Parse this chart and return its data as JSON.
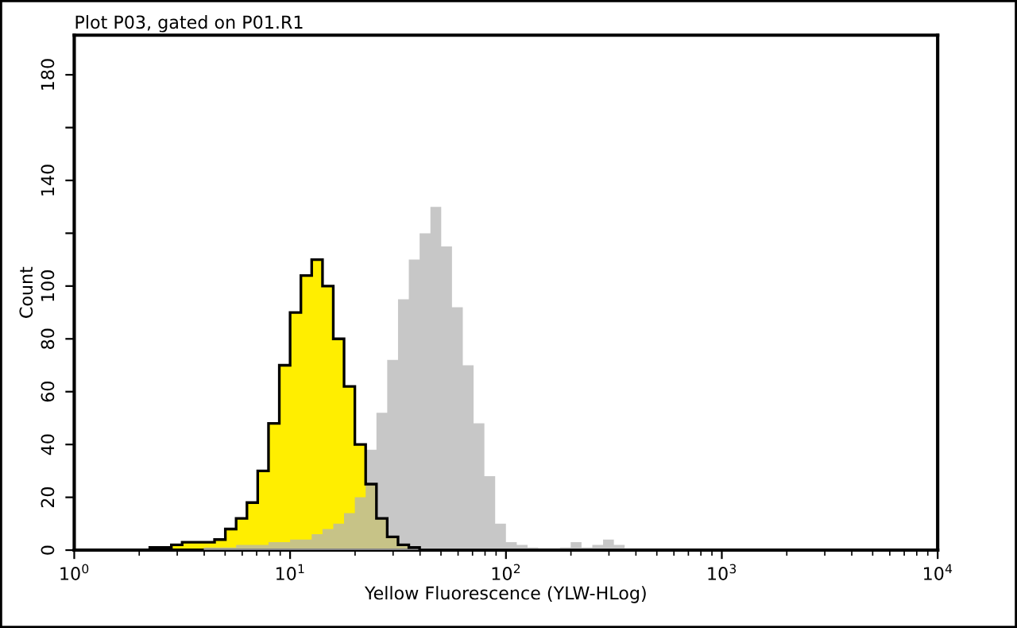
{
  "chart_data": {
    "type": "histogram",
    "title": "Plot P03, gated on P01.R1",
    "xlabel": "Yellow Fluorescence (YLW-HLog)",
    "ylabel": "Count",
    "bins": [
      1.995,
      2.239,
      2.512,
      2.818,
      3.162,
      3.548,
      3.981,
      4.467,
      5.012,
      5.623,
      6.31,
      7.079,
      7.943,
      8.913,
      10,
      11.22,
      12.59,
      14.13,
      15.85,
      17.78,
      19.95,
      22.39,
      25.12,
      28.18,
      31.62,
      35.48,
      39.81,
      44.67,
      50.12,
      56.23,
      63.1,
      70.79,
      79.43,
      89.13,
      100,
      112.2,
      125.9,
      141.3,
      158.5,
      177.8,
      199.5,
      223.9,
      251.2,
      281.8,
      316.2,
      354.8,
      398.1,
      446.7,
      501.2
    ],
    "series": [
      {
        "color": "#ffee00",
        "values": [
          0,
          1,
          1,
          2,
          3,
          3,
          3,
          4,
          8,
          12,
          18,
          30,
          48,
          70,
          90,
          104,
          110,
          100,
          80,
          62,
          40,
          25,
          12,
          5,
          2,
          1,
          0,
          0,
          0,
          0,
          0,
          0,
          0,
          0,
          0,
          0,
          0,
          0,
          0,
          0,
          0,
          0,
          0,
          0,
          0,
          0,
          0,
          0
        ]
      },
      {
        "color": "#b4b4b4",
        "values": [
          0,
          0,
          0,
          0,
          0,
          0,
          1,
          1,
          1,
          2,
          2,
          2,
          3,
          3,
          4,
          4,
          6,
          8,
          10,
          14,
          20,
          38,
          52,
          72,
          95,
          110,
          120,
          130,
          115,
          92,
          70,
          48,
          28,
          10,
          3,
          2,
          1,
          0,
          0,
          1,
          3,
          1,
          2,
          4,
          2,
          0,
          0,
          0
        ]
      }
    ],
    "log": "x",
    "xlim": [
      1,
      10000
    ],
    "xticks": [
      {
        "value": 1,
        "label": "10$^{0}$"
      },
      {
        "value": 10,
        "label": "10$^{1}$"
      },
      {
        "value": 100,
        "label": "10$^{2}$"
      },
      {
        "value": 1000,
        "label": "10$^{3}$"
      },
      {
        "value": 10000,
        "label": "10$^{4}$"
      }
    ],
    "ylim": [
      0,
      195
    ],
    "yticks": [
      0,
      20,
      40,
      60,
      80,
      100,
      {
        "value": 120,
        "label": null
      },
      140,
      {
        "value": 160,
        "label": null
      },
      180
    ],
    "grid": false
  }
}
